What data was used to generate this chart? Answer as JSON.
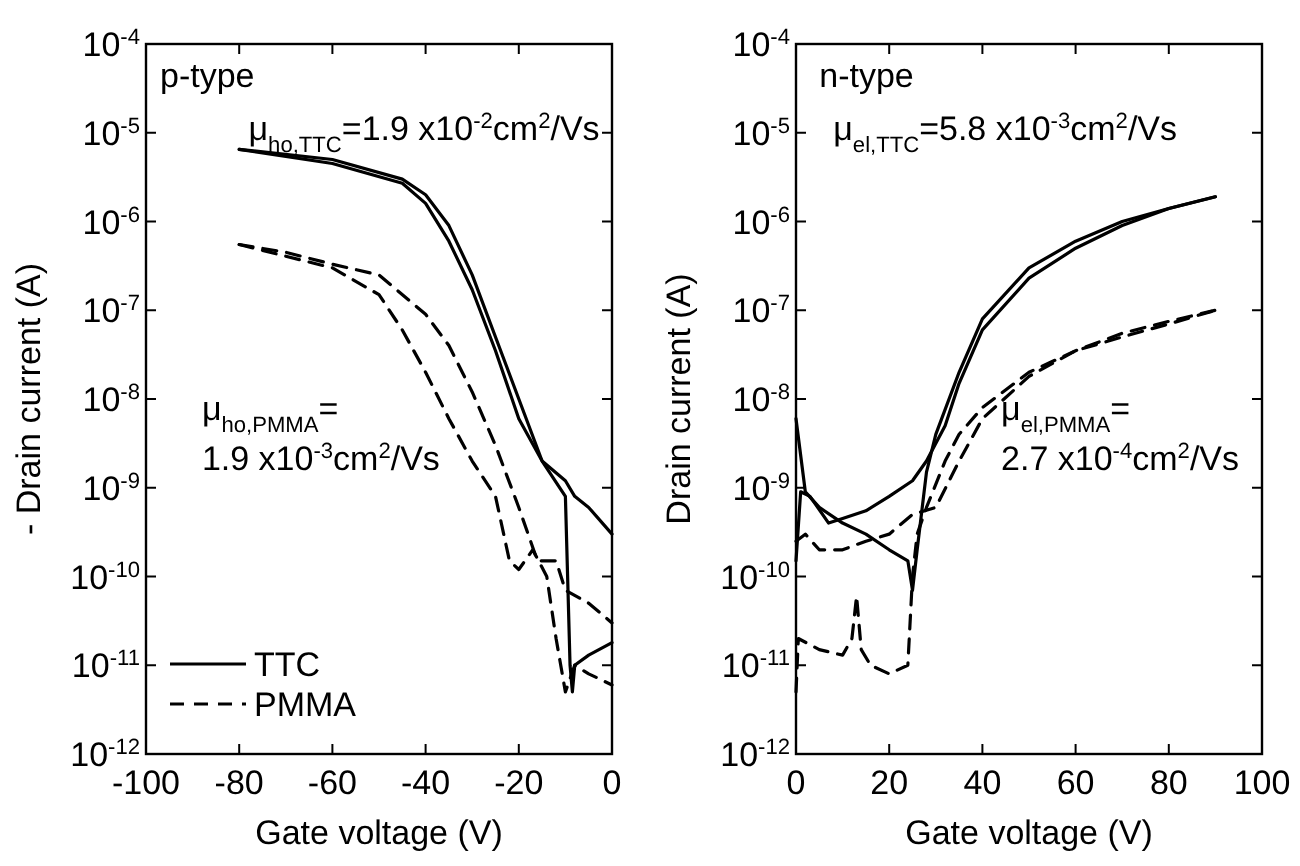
{
  "chart_data": [
    {
      "type": "line",
      "xlabel": "Gate voltage (V)",
      "ylabel": "- Drain current (A)",
      "log": "y",
      "legend": "bottom left",
      "xlim": [
        -100,
        0
      ],
      "xticks": [
        -100,
        -80,
        -60,
        -40,
        -20,
        0
      ],
      "ylim": [
        1e-12,
        0.0001
      ],
      "yticks": [
        {
          "value": 1e-12,
          "label": "10$^{-12}$"
        },
        {
          "value": 1e-11,
          "label": "10$^{-11}$"
        },
        {
          "value": 1e-10,
          "label": "10$^{-10}$"
        },
        {
          "value": 1e-09,
          "label": "10$^{-9}$"
        },
        {
          "value": 1e-08,
          "label": "10$^{-8}$"
        },
        {
          "value": 1e-07,
          "label": "10$^{-7}$"
        },
        {
          "value": 1e-06,
          "label": "10$^{-6}$"
        },
        {
          "value": 1e-05,
          "label": "10$^{-5}$"
        },
        {
          "value": 0.0001,
          "label": "10$^{-4}$"
        }
      ],
      "annotations": [
        "p-type",
        "μ$_{ho,TTC}$=1.9 x10$^{-2}$cm$^{2}$/Vs",
        "μ$_{ho,PMMA}$=",
        "1.9 x10$^{-3}$cm$^{2}$/Vs"
      ],
      "series": [
        {
          "name": "TTC",
          "color": "#000000",
          "line_style": "solid",
          "x": [
            -80,
            -60,
            -45,
            -40,
            -35,
            -30,
            -25,
            -20,
            -15,
            -10,
            -8,
            -5,
            0
          ],
          "values": [
            6.5e-06,
            5e-06,
            3e-06,
            2e-06,
            9e-07,
            2.5e-07,
            5e-08,
            1e-08,
            2e-09,
            1.2e-09,
            8e-10,
            6e-10,
            3e-10
          ]
        },
        {
          "color": "#000000",
          "line_style": "solid",
          "x": [
            -80,
            -60,
            -45,
            -40,
            -35,
            -30,
            -25,
            -20,
            -15,
            -10,
            -9,
            -8.5,
            -8,
            -5,
            0
          ],
          "values": [
            6.5e-06,
            4.5e-06,
            2.7e-06,
            1.6e-06,
            6e-07,
            1.7e-07,
            3.5e-08,
            6e-09,
            2e-09,
            8e-10,
            1e-11,
            5e-12,
            1e-11,
            1.3e-11,
            1.8e-11
          ]
        },
        {
          "name": "PMMA",
          "color": "#000000",
          "line_style": "dashed",
          "x": [
            -80,
            -70,
            -60,
            -50,
            -40,
            -35,
            -30,
            -25,
            -20,
            -16,
            -12,
            -10,
            -5,
            0
          ],
          "values": [
            5.5e-07,
            4.5e-07,
            3.3e-07,
            2.5e-07,
            9e-08,
            4e-08,
            1.2e-08,
            3e-09,
            6e-10,
            1.5e-10,
            1.5e-10,
            7e-11,
            5e-11,
            3e-11
          ]
        },
        {
          "color": "#000000",
          "line_style": "dashed",
          "x": [
            -80,
            -60,
            -50,
            -45,
            -40,
            -35,
            -30,
            -25,
            -22,
            -20,
            -17,
            -14,
            -12,
            -10,
            -8,
            -5,
            0
          ],
          "values": [
            5.5e-07,
            3e-07,
            1.5e-07,
            6e-08,
            2e-08,
            6e-09,
            2e-09,
            8e-10,
            1.5e-10,
            1.2e-10,
            2e-10,
            1e-10,
            2e-11,
            5e-12,
            1e-11,
            8e-12,
            6e-12
          ]
        }
      ]
    },
    {
      "type": "line",
      "xlabel": "Gate voltage (V)",
      "ylabel": "Drain current (A)",
      "log": "y",
      "legend": false,
      "xlim": [
        0,
        100
      ],
      "xticks": [
        0,
        20,
        40,
        60,
        80,
        100
      ],
      "ylim": [
        1e-12,
        0.0001
      ],
      "yticks": [
        {
          "value": 1e-12,
          "label": "10$^{-12}$"
        },
        {
          "value": 1e-11,
          "label": "10$^{-11}$"
        },
        {
          "value": 1e-10,
          "label": "10$^{-10}$"
        },
        {
          "value": 1e-09,
          "label": "10$^{-9}$"
        },
        {
          "value": 1e-08,
          "label": "10$^{-8}$"
        },
        {
          "value": 1e-07,
          "label": "10$^{-7}$"
        },
        {
          "value": 1e-06,
          "label": "10$^{-6}$"
        },
        {
          "value": 1e-05,
          "label": "10$^{-5}$"
        },
        {
          "value": 0.0001,
          "label": "10$^{-4}$"
        }
      ],
      "annotations": [
        "n-type",
        "μ$_{el,TTC}$=5.8 x10$^{-3}$cm$^{2}$/Vs",
        "μ$_{el,PMMA}$=",
        "2.7 x10$^{-4}$cm$^{2}$/Vs"
      ],
      "series": [
        {
          "color": "#000000",
          "line_style": "solid",
          "x": [
            0,
            2,
            5,
            10,
            15,
            20,
            24,
            25,
            26,
            28,
            30,
            35,
            40,
            50,
            60,
            70,
            80,
            90
          ],
          "values": [
            6e-09,
            9e-10,
            6e-10,
            4e-10,
            3e-10,
            2e-10,
            1.5e-10,
            7e-11,
            2e-10,
            1.5e-09,
            4e-09,
            2e-08,
            8e-08,
            3e-07,
            6e-07,
            1e-06,
            1.4e-06,
            1.9e-06
          ]
        },
        {
          "color": "#000000",
          "line_style": "solid",
          "x": [
            0,
            1,
            3,
            7,
            10,
            15,
            20,
            25,
            28,
            32,
            35,
            40,
            50,
            60,
            70,
            80,
            90
          ],
          "values": [
            1.5e-10,
            9e-10,
            8e-10,
            4e-10,
            4.5e-10,
            5.5e-10,
            8e-10,
            1.2e-09,
            2e-09,
            5e-09,
            1.5e-08,
            6e-08,
            2.3e-07,
            5e-07,
            9e-07,
            1.4e-06,
            1.9e-06
          ]
        },
        {
          "color": "#000000",
          "line_style": "dashed",
          "x": [
            0,
            2,
            5,
            10,
            15,
            20,
            25,
            30,
            35,
            40,
            50,
            60,
            70,
            80,
            90
          ],
          "values": [
            2.5e-10,
            3e-10,
            2e-10,
            2e-10,
            2.5e-10,
            3e-10,
            5e-10,
            6e-10,
            2e-09,
            6e-09,
            1.8e-08,
            3.5e-08,
            5e-08,
            7e-08,
            1e-07
          ]
        },
        {
          "color": "#000000",
          "line_style": "dashed",
          "x": [
            0,
            0.5,
            5,
            10,
            12,
            13,
            14,
            16,
            20,
            24,
            25,
            26,
            28,
            32,
            35,
            40,
            50,
            60,
            70,
            80,
            90
          ],
          "values": [
            5e-12,
            2e-11,
            1.5e-11,
            1.3e-11,
            2e-11,
            6e-11,
            1.5e-11,
            1e-11,
            8e-12,
            1e-11,
            1e-10,
            3e-10,
            6e-10,
            2e-09,
            4e-09,
            8e-09,
            2e-08,
            3.5e-08,
            5.5e-08,
            7.5e-08,
            1e-07
          ]
        }
      ]
    }
  ]
}
